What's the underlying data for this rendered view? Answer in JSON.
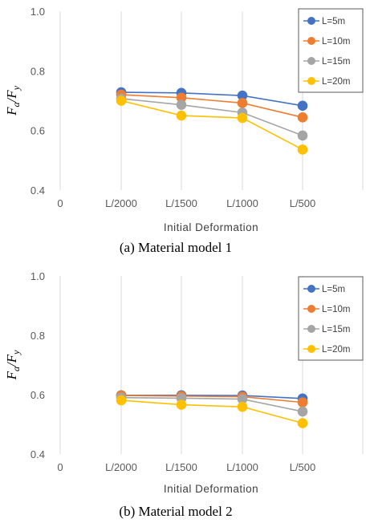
{
  "chart_data": [
    {
      "type": "line",
      "caption": "(a) Material model 1",
      "xlabel": "Initial Deformation",
      "ylabel": "Fa/Fy",
      "x_ticks": [
        "0",
        "L/2000",
        "L/1500",
        "L/1000",
        "L/500"
      ],
      "categories": [
        "L/2000",
        "L/1500",
        "L/1000",
        "L/500"
      ],
      "ylim": [
        0.4,
        1.0
      ],
      "yticks": [
        "0.4",
        "0.6",
        "0.8",
        "1.0"
      ],
      "grid": "vertical",
      "legend_position": "top-right",
      "series": [
        {
          "name": "L=5m",
          "color": "#4472C4",
          "values": [
            0.728,
            0.726,
            0.717,
            0.683
          ]
        },
        {
          "name": "L=10m",
          "color": "#ED7D31",
          "values": [
            0.72,
            0.71,
            0.692,
            0.644
          ]
        },
        {
          "name": "L=15m",
          "color": "#A5A5A5",
          "values": [
            0.707,
            0.686,
            0.66,
            0.583
          ]
        },
        {
          "name": "L=20m",
          "color": "#FFC000",
          "values": [
            0.7,
            0.65,
            0.642,
            0.536
          ]
        }
      ]
    },
    {
      "type": "line",
      "caption": "(b) Material model 2",
      "xlabel": "Initial Deformation",
      "ylabel": "Fa/Fy",
      "x_ticks": [
        "0",
        "L/2000",
        "L/1500",
        "L/1000",
        "L/500"
      ],
      "categories": [
        "L/2000",
        "L/1500",
        "L/1000",
        "L/500"
      ],
      "ylim": [
        0.4,
        1.0
      ],
      "yticks": [
        "0.4",
        "0.6",
        "0.8",
        "1.0"
      ],
      "grid": "vertical",
      "legend_position": "top-right",
      "series": [
        {
          "name": "L=5m",
          "color": "#4472C4",
          "values": [
            0.598,
            0.598,
            0.597,
            0.587
          ]
        },
        {
          "name": "L=10m",
          "color": "#ED7D31",
          "values": [
            0.597,
            0.595,
            0.593,
            0.574
          ]
        },
        {
          "name": "L=15m",
          "color": "#A5A5A5",
          "values": [
            0.59,
            0.588,
            0.585,
            0.543
          ]
        },
        {
          "name": "L=20m",
          "color": "#FFC000",
          "values": [
            0.581,
            0.566,
            0.559,
            0.504
          ]
        }
      ]
    }
  ]
}
